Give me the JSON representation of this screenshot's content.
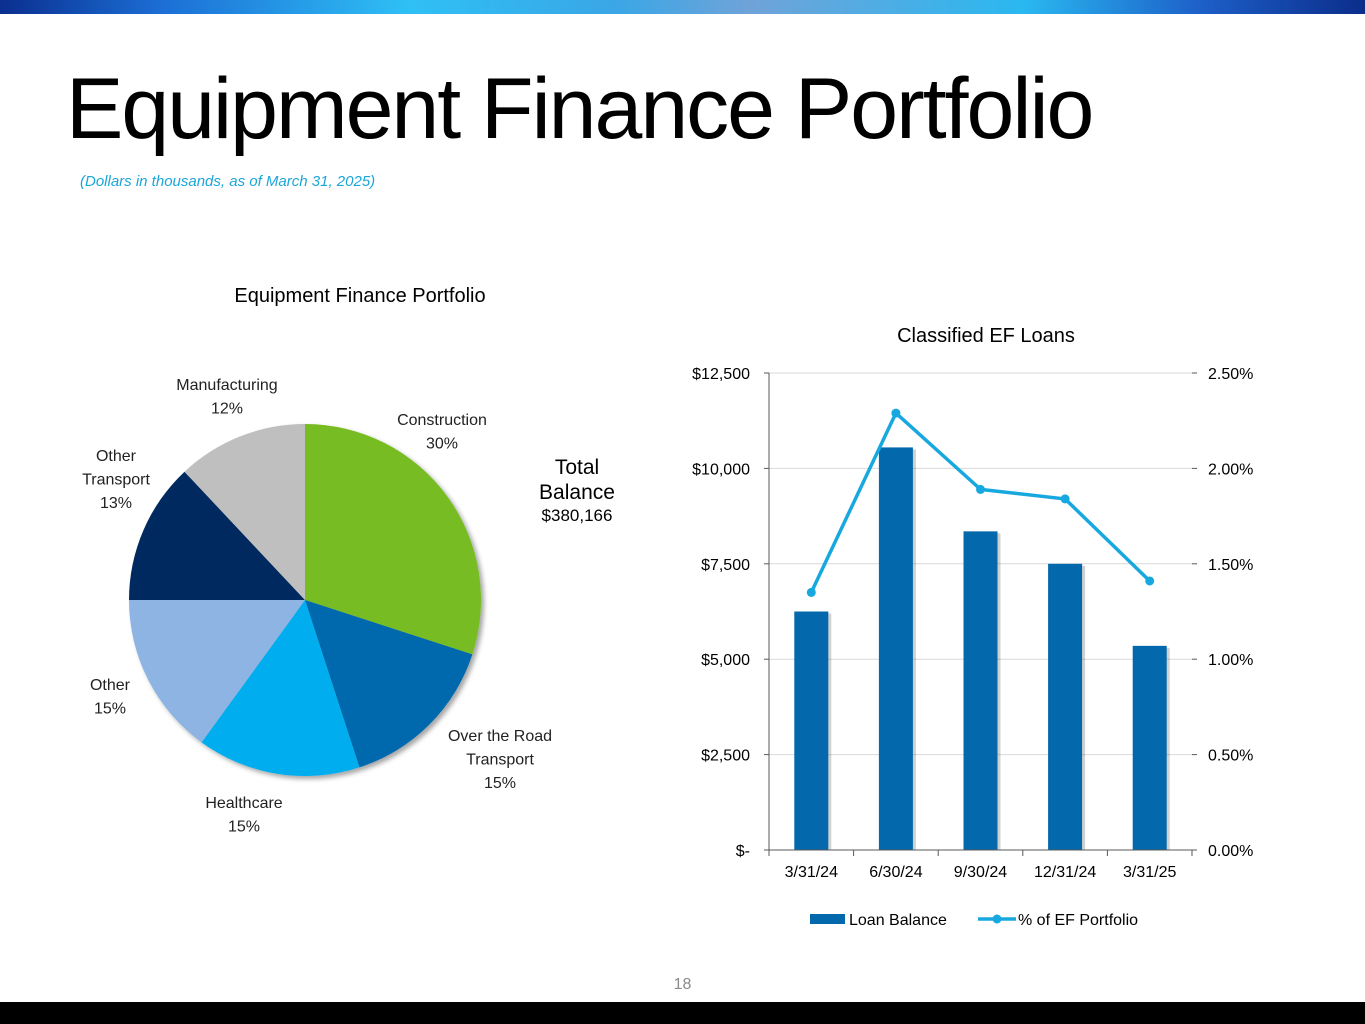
{
  "header": {
    "title": "Equipment Finance Portfolio",
    "subtitle": "(Dollars in thousands, as of March 31, 2025)"
  },
  "footer": {
    "page_number": "18"
  },
  "colors": {
    "construction": "#77BC22",
    "over_the_road": "#0468AC",
    "healthcare": "#00AEEF",
    "other": "#8DB4E2",
    "other_transport": "#002B5F",
    "manufacturing": "#BFBFBF",
    "bar": "#0468AC",
    "line": "#18A8E0"
  },
  "chart_data": [
    {
      "type": "pie",
      "title": "Equipment Finance Portfolio",
      "total_label": "Total Balance",
      "total_value": "$380,166",
      "slices": [
        {
          "label": "Construction",
          "label_lines": [
            "Construction"
          ],
          "value": 30,
          "pct_label": "30%",
          "color": "#77BC22"
        },
        {
          "label": "Over the Road Transport",
          "label_lines": [
            "Over the Road",
            "Transport"
          ],
          "value": 15,
          "pct_label": "15%",
          "color": "#0468AC"
        },
        {
          "label": "Healthcare",
          "label_lines": [
            "Healthcare"
          ],
          "value": 15,
          "pct_label": "15%",
          "color": "#00AEEF"
        },
        {
          "label": "Other",
          "label_lines": [
            "Other"
          ],
          "value": 15,
          "pct_label": "15%",
          "color": "#8DB4E2"
        },
        {
          "label": "Other Transport",
          "label_lines": [
            "Other",
            "Transport"
          ],
          "value": 13,
          "pct_label": "13%",
          "color": "#002B5F"
        },
        {
          "label": "Manufacturing",
          "label_lines": [
            "Manufacturing"
          ],
          "value": 12,
          "pct_label": "12%",
          "color": "#BFBFBF"
        }
      ]
    },
    {
      "type": "bar",
      "title": "Classified EF Loans",
      "categories": [
        "3/31/24",
        "6/30/24",
        "9/30/24",
        "12/31/24",
        "3/31/25"
      ],
      "series": [
        {
          "name": "Loan Balance",
          "type": "bar",
          "axis": "left",
          "color": "#0468AC",
          "values": [
            6250,
            10550,
            8350,
            7500,
            5350
          ]
        },
        {
          "name": "% of EF Portfolio",
          "type": "line",
          "axis": "right",
          "color": "#18A8E0",
          "values": [
            1.35,
            2.29,
            1.89,
            1.84,
            1.41
          ]
        }
      ],
      "y_left": {
        "min": 0,
        "max": 12500,
        "ticks": [
          0,
          2500,
          5000,
          7500,
          10000,
          12500
        ],
        "tick_labels": [
          "$-",
          "$2,500",
          "$5,000",
          "$7,500",
          "$10,000",
          "$12,500"
        ]
      },
      "y_right": {
        "min": 0,
        "max": 2.5,
        "ticks": [
          0,
          0.5,
          1.0,
          1.5,
          2.0,
          2.5
        ],
        "tick_labels": [
          "0.00%",
          "0.50%",
          "1.00%",
          "1.50%",
          "2.00%",
          "2.50%"
        ]
      },
      "grid": true,
      "legend": "bottom"
    }
  ]
}
